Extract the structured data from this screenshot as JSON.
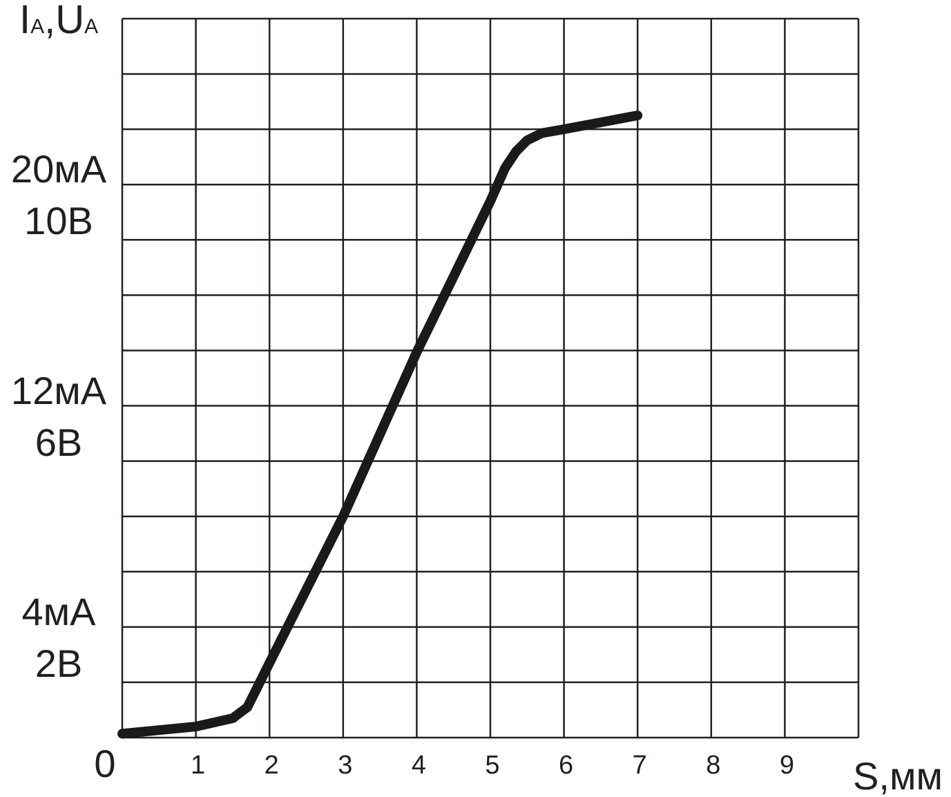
{
  "chart_data": {
    "type": "line",
    "ylabel": [
      "I",
      "A",
      ",U",
      "A"
    ],
    "xlabel": "S,мм",
    "origin_label": "0",
    "xlim": [
      0,
      10
    ],
    "ylim": [
      0,
      13
    ],
    "xticks": [
      1,
      2,
      3,
      4,
      5,
      6,
      7,
      8,
      9
    ],
    "yticks": [
      {
        "value": 2,
        "label": "4мА\n2В"
      },
      {
        "value": 6,
        "label": "12мА\n6В"
      },
      {
        "value": 10,
        "label": "20мА\n10В"
      }
    ],
    "xgrid": [
      0,
      1,
      2,
      3,
      4,
      5,
      6,
      7,
      8,
      9,
      10
    ],
    "ygrid": [
      0,
      1,
      2,
      3,
      4,
      5,
      6,
      7,
      8,
      9,
      10,
      11,
      12,
      13
    ],
    "grid": true,
    "series": [
      {
        "color": "#1a1a1a",
        "x": [
          0,
          1,
          1.5,
          1.6,
          1.7,
          2,
          3,
          4,
          5,
          5.2,
          5.35,
          5.5,
          5.7,
          6,
          7
        ],
        "values": [
          0.07,
          0.2,
          0.35,
          0.45,
          0.55,
          1.35,
          4.0,
          6.97,
          9.7,
          10.3,
          10.6,
          10.8,
          10.93,
          11.0,
          11.25
        ]
      }
    ]
  }
}
